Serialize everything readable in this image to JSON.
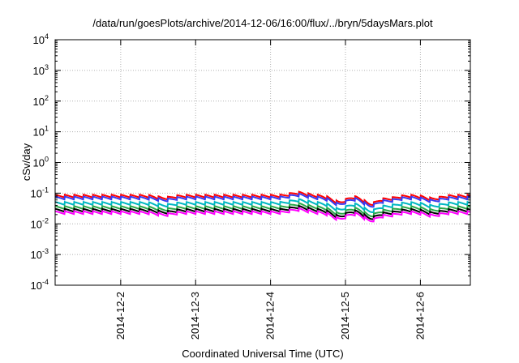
{
  "chart_data": {
    "type": "line",
    "title": "/data/run/goesPlots/archive/2014-12-06/16:00/flux/../bryn/5daysMars.plot",
    "xlabel": "Coordinated Universal Time (UTC)",
    "ylabel": "cSv/day",
    "yscale": "log",
    "ylim": [
      0.0001,
      10000
    ],
    "y_tick_labels": [
      {
        "base": "10",
        "exp": "-4",
        "value": 0.0001
      },
      {
        "base": "10",
        "exp": "-3",
        "value": 0.001
      },
      {
        "base": "10",
        "exp": "-2",
        "value": 0.01
      },
      {
        "base": "10",
        "exp": "-1",
        "value": 0.1
      },
      {
        "base": "10",
        "exp": "0",
        "value": 1
      },
      {
        "base": "10",
        "exp": "1",
        "value": 10
      },
      {
        "base": "10",
        "exp": "2",
        "value": 100
      },
      {
        "base": "10",
        "exp": "3",
        "value": 1000
      },
      {
        "base": "10",
        "exp": "4",
        "value": 10000
      }
    ],
    "xlim": [
      "2014-12-01 03:00",
      "2014-12-06 16:00"
    ],
    "x_tick_labels": [
      "2014-12-2",
      "2014-12-3",
      "2014-12-4",
      "2014-12-5",
      "2014-12-6"
    ],
    "grid": true,
    "legend": "none",
    "series": [
      {
        "color": "#ff0000",
        "level": 0.09
      },
      {
        "color": "#3a3af0",
        "level": 0.078
      },
      {
        "color": "#00b7c2",
        "level": 0.052
      },
      {
        "color": "#2aa84a",
        "level": 0.038
      },
      {
        "color": "#000000",
        "level": 0.031
      },
      {
        "color": "#ff00ff",
        "level": 0.026
      }
    ],
    "pattern": {
      "period_hours": 3,
      "decay_to_fraction": 0.8,
      "events": [
        {
          "time": "2014-12-02 14:00",
          "dip": 0.85
        },
        {
          "time": "2014-12-04 09:00",
          "dip": 1.25
        },
        {
          "time": "2014-12-04 22:00",
          "dip": 0.62
        },
        {
          "time": "2014-12-05 08:00",
          "dip": 0.55
        },
        {
          "time": "2014-12-05 14:00",
          "dip": 0.82
        },
        {
          "time": "2014-12-06 04:00",
          "dip": 0.8
        }
      ]
    }
  }
}
